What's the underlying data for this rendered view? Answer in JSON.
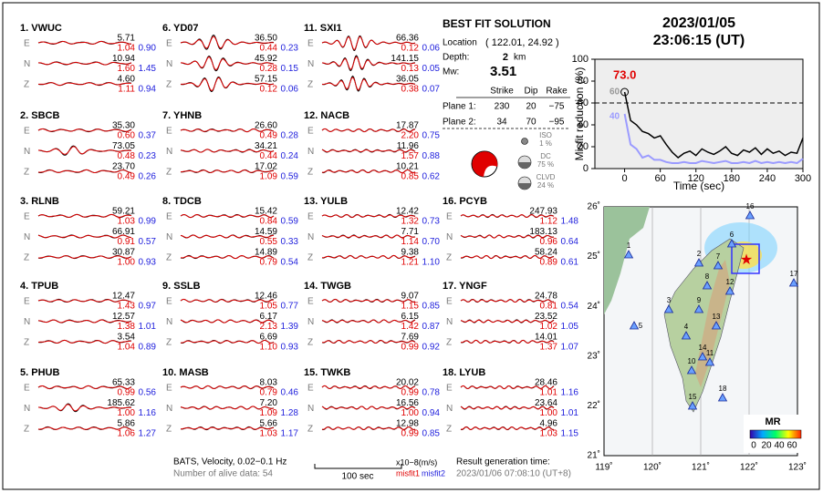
{
  "event": {
    "date": "2023/01/05",
    "time": "23:06:15  (UT)"
  },
  "components": [
    "E",
    "N",
    "Z"
  ],
  "stations": [
    {
      "title": "1.  VWUC",
      "rows": [
        [
          "5.71",
          "1.04",
          "0.90"
        ],
        [
          "10.94",
          "1.60",
          "1.45"
        ],
        [
          "4.60",
          "1.11",
          "0.94"
        ]
      ]
    },
    {
      "title": "2.  SBCB",
      "rows": [
        [
          "35.30",
          "0.60",
          "0.37"
        ],
        [
          "73.05",
          "0.48",
          "0.23"
        ],
        [
          "23.70",
          "0.49",
          "0.26"
        ]
      ]
    },
    {
      "title": "3.  RLNB",
      "rows": [
        [
          "59.21",
          "1.03",
          "0.99"
        ],
        [
          "66.91",
          "0.91",
          "0.57"
        ],
        [
          "30.87",
          "1.00",
          "0.93"
        ]
      ]
    },
    {
      "title": "4.  TPUB",
      "rows": [
        [
          "12.47",
          "1.43",
          "0.97"
        ],
        [
          "12.57",
          "1.38",
          "1.01"
        ],
        [
          "3.54",
          "1.04",
          "0.89"
        ]
      ]
    },
    {
      "title": "5.  PHUB",
      "rows": [
        [
          "65.33",
          "0.99",
          "0.56"
        ],
        [
          "185.62",
          "1.00",
          "1.16"
        ],
        [
          "5.86",
          "1.06",
          "1.27"
        ]
      ]
    },
    {
      "title": "6.  YD07",
      "rows": [
        [
          "36.50",
          "0.44",
          "0.23"
        ],
        [
          "45.92",
          "0.28",
          "0.15"
        ],
        [
          "57.15",
          "0.12",
          "0.06"
        ]
      ]
    },
    {
      "title": "7.  YHNB",
      "rows": [
        [
          "26.60",
          "0.49",
          "0.28"
        ],
        [
          "34.21",
          "0.44",
          "0.24"
        ],
        [
          "17.02",
          "1.09",
          "0.59"
        ]
      ]
    },
    {
      "title": "8.  TDCB",
      "rows": [
        [
          "15.42",
          "0.84",
          "0.59"
        ],
        [
          "14.59",
          "0.55",
          "0.33"
        ],
        [
          "14.89",
          "0.79",
          "0.54"
        ]
      ]
    },
    {
      "title": "9.  SSLB",
      "rows": [
        [
          "12.46",
          "1.05",
          "0.77"
        ],
        [
          "6.17",
          "2.13",
          "1.39"
        ],
        [
          "6.69",
          "1.10",
          "0.93"
        ]
      ]
    },
    {
      "title": "10.  MASB",
      "rows": [
        [
          "8.03",
          "0.79",
          "0.46"
        ],
        [
          "7.20",
          "1.09",
          "1.28"
        ],
        [
          "5.66",
          "1.03",
          "1.17"
        ]
      ]
    },
    {
      "title": "11.  SXI1",
      "rows": [
        [
          "66.36",
          "0.12",
          "0.06"
        ],
        [
          "141.15",
          "0.13",
          "0.05"
        ],
        [
          "36.05",
          "0.38",
          "0.07"
        ]
      ]
    },
    {
      "title": "12.  NACB",
      "rows": [
        [
          "17.87",
          "2.20",
          "0.75"
        ],
        [
          "11.96",
          "1.57",
          "0.88"
        ],
        [
          "10.21",
          "0.85",
          "0.62"
        ]
      ]
    },
    {
      "title": "13.  YULB",
      "rows": [
        [
          "12.42",
          "1.32",
          "0.73"
        ],
        [
          "7.71",
          "1.14",
          "0.70"
        ],
        [
          "9.38",
          "1.21",
          "1.10"
        ]
      ]
    },
    {
      "title": "14.  TWGB",
      "rows": [
        [
          "9.07",
          "1.15",
          "0.85"
        ],
        [
          "6.15",
          "1.42",
          "0.87"
        ],
        [
          "7.69",
          "0.99",
          "0.92"
        ]
      ]
    },
    {
      "title": "15.  TWKB",
      "rows": [
        [
          "20.02",
          "0.99",
          "0.78"
        ],
        [
          "16.56",
          "1.00",
          "0.94"
        ],
        [
          "12.98",
          "0.99",
          "0.85"
        ]
      ]
    },
    {
      "title": "16.  PCYB",
      "rows": [
        [
          "247.93",
          "1.12",
          "1.48"
        ],
        [
          "183.13",
          "0.96",
          "0.64"
        ],
        [
          "58.24",
          "0.89",
          "0.61"
        ]
      ]
    },
    {
      "title": "17.  YNGF",
      "rows": [
        [
          "24.78",
          "0.81",
          "0.54"
        ],
        [
          "23.52",
          "1.02",
          "1.05"
        ],
        [
          "14.01",
          "1.37",
          "1.07"
        ]
      ]
    },
    {
      "title": "18.  LYUB",
      "rows": [
        [
          "28.46",
          "1.01",
          "1.16"
        ],
        [
          "23.64",
          "1.00",
          "1.01"
        ],
        [
          "4.96",
          "1.03",
          "1.15"
        ]
      ]
    }
  ],
  "solution": {
    "title": "BEST FIT SOLUTION",
    "location_label": "Location",
    "location": "( 122.01, 24.92 )",
    "depth_label": "Depth:",
    "depth": "2",
    "depth_unit": "km",
    "mw_label": "Mw:",
    "mw": "3.51",
    "headers": [
      "Strike",
      "Dip",
      "Rake"
    ],
    "planes": [
      {
        "label": "Plane 1:",
        "values": [
          "230",
          "20",
          "−75"
        ]
      },
      {
        "label": "Plane 2:",
        "values": [
          "34",
          "70",
          "−95"
        ]
      }
    ],
    "parts": [
      {
        "name": "ISO",
        "value": "1 %"
      },
      {
        "name": "DC",
        "value": "75 %"
      },
      {
        "name": "CLVD",
        "value": "24 %"
      }
    ]
  },
  "chart_data": {
    "type": "line",
    "ylabel": "Misfit reduction (%)",
    "xlabel": "Time (sec)",
    "x": [
      0,
      10,
      20,
      30,
      40,
      50,
      60,
      70,
      80,
      90,
      100,
      110,
      120,
      130,
      140,
      150,
      160,
      170,
      180,
      190,
      200,
      210,
      220,
      230,
      240,
      250,
      260,
      270,
      280,
      290,
      300
    ],
    "series": [
      {
        "color": "#000000",
        "values": [
          70,
          44,
          40,
          34,
          32,
          28,
          30,
          22,
          15,
          10,
          14,
          16,
          12,
          18,
          15,
          13,
          16,
          20,
          14,
          12,
          17,
          15,
          19,
          13,
          18,
          14,
          16,
          12,
          15,
          14,
          28
        ]
      },
      {
        "color": "#9b9bff",
        "values": [
          50,
          22,
          18,
          10,
          12,
          8,
          8,
          6,
          5,
          5,
          6,
          5,
          5,
          7,
          6,
          5,
          6,
          7,
          5,
          5,
          6,
          5,
          7,
          5,
          6,
          5,
          6,
          5,
          6,
          5,
          9
        ]
      }
    ],
    "xlim": [
      -50,
      300
    ],
    "ylim": [
      0,
      100
    ],
    "xticks": [
      0,
      60,
      120,
      180,
      240,
      300
    ],
    "yticks": [
      0,
      20,
      40,
      60,
      80,
      100
    ],
    "reference_line": 60,
    "annotations": [
      {
        "text": "73.0",
        "color": "#e00000"
      },
      {
        "text": "60",
        "color": "#999999"
      },
      {
        "text": "40",
        "color": "#9b9bff"
      }
    ]
  },
  "map": {
    "lon_ticks": [
      "119˚",
      "120˚",
      "121˚",
      "122˚",
      "123˚"
    ],
    "lat_ticks": [
      "26˚",
      "25˚",
      "24˚",
      "23˚",
      "22˚",
      "21˚"
    ],
    "stations": [
      "1",
      "2",
      "3",
      "4",
      "5",
      "6",
      "7",
      "8",
      "9",
      "10",
      "11",
      "12",
      "13",
      "14",
      "15",
      "16",
      "17",
      "18"
    ],
    "colorbar_title": "MR",
    "colorbar_ticks": [
      "0",
      "20",
      "40",
      "60"
    ]
  },
  "footer": {
    "source": "BATS, Velocity, 0.02−0.1 Hz",
    "alive": "Number of alive data: 54",
    "scale": "100 sec",
    "units": "x10−8(m/s)",
    "misfit1": "misfit1",
    "misfit2": "misfit2",
    "generated_label": "Result generation time:",
    "generated": "2023/01/06 07:08:10 (UT+8)"
  }
}
